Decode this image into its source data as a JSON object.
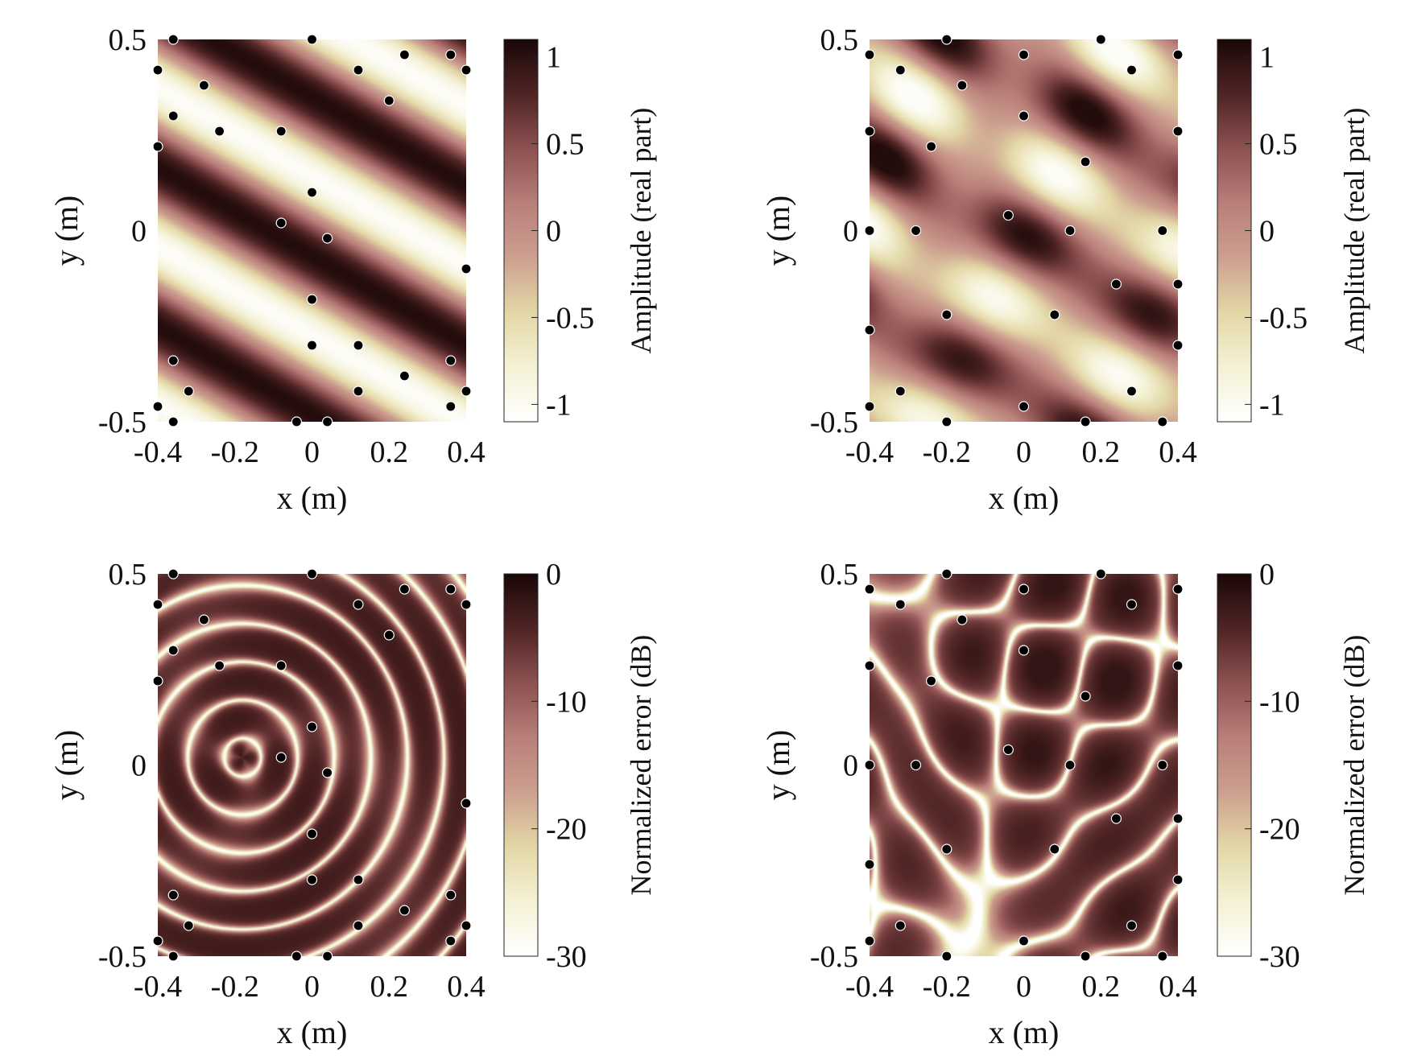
{
  "figure": {
    "colormap": [
      "#ffffff",
      "#f4f1d4",
      "#e3d7a6",
      "#cc9f8f",
      "#b97f7a",
      "#8d5151",
      "#4f2424",
      "#1a0707"
    ],
    "mark_color": "#000000",
    "mark_edge_color": "#ffffff"
  },
  "chart_data": [
    {
      "type": "heatmap",
      "xlabel": "x (m)",
      "ylabel": "y (m)",
      "xlim": [
        -0.4,
        0.4
      ],
      "ylim": [
        -0.5,
        0.5
      ],
      "xticks": [
        "-0.4",
        "-0.2",
        "0",
        "0.2",
        "0.4"
      ],
      "yticks": [
        "-0.5",
        "0",
        "0.5"
      ],
      "colorbar": {
        "label": "Amplitude (real part)",
        "range": [
          -1.1,
          1.1
        ],
        "ticks": [
          "1",
          "0.5",
          "0",
          "-0.5",
          "-1"
        ]
      },
      "field": "plane-wave",
      "points": [
        [
          -0.36,
          0.5
        ],
        [
          0,
          0.5
        ],
        [
          -0.4,
          0.42
        ],
        [
          0.12,
          0.42
        ],
        [
          0.24,
          0.46
        ],
        [
          0.36,
          0.46
        ],
        [
          0.4,
          0.42
        ],
        [
          -0.28,
          0.38
        ],
        [
          0.2,
          0.34
        ],
        [
          -0.36,
          0.3
        ],
        [
          -0.24,
          0.26
        ],
        [
          -0.08,
          0.26
        ],
        [
          -0.4,
          0.22
        ],
        [
          0,
          0.1
        ],
        [
          -0.08,
          0.02
        ],
        [
          0.04,
          -0.02
        ],
        [
          0.4,
          -0.1
        ],
        [
          0,
          -0.18
        ],
        [
          0,
          -0.3
        ],
        [
          0.12,
          -0.3
        ],
        [
          -0.36,
          -0.34
        ],
        [
          0.36,
          -0.34
        ],
        [
          -0.32,
          -0.42
        ],
        [
          0.12,
          -0.42
        ],
        [
          0.24,
          -0.38
        ],
        [
          -0.4,
          -0.46
        ],
        [
          0.36,
          -0.46
        ],
        [
          0.4,
          -0.42
        ],
        [
          -0.36,
          -0.5
        ],
        [
          -0.04,
          -0.5
        ],
        [
          0.04,
          -0.5
        ]
      ]
    },
    {
      "type": "heatmap",
      "xlabel": "x (m)",
      "ylabel": "y (m)",
      "xlim": [
        -0.4,
        0.4
      ],
      "ylim": [
        -0.5,
        0.5
      ],
      "xticks": [
        "-0.4",
        "-0.2",
        "0",
        "0.2",
        "0.4"
      ],
      "yticks": [
        "-0.5",
        "0",
        "0.5"
      ],
      "colorbar": {
        "label": "Amplitude (real part)",
        "range": [
          -1.1,
          1.1
        ],
        "ticks": [
          "1",
          "0.5",
          "0",
          "-0.5",
          "-1"
        ]
      },
      "field": "plane-wave-2",
      "points": [
        [
          -0.2,
          0.5
        ],
        [
          0.2,
          0.5
        ],
        [
          -0.4,
          0.46
        ],
        [
          0,
          0.46
        ],
        [
          0.4,
          0.46
        ],
        [
          -0.32,
          0.42
        ],
        [
          0.28,
          0.42
        ],
        [
          -0.16,
          0.38
        ],
        [
          0,
          0.3
        ],
        [
          -0.4,
          0.26
        ],
        [
          0.4,
          0.26
        ],
        [
          -0.24,
          0.22
        ],
        [
          0.16,
          0.18
        ],
        [
          -0.04,
          0.04
        ],
        [
          -0.4,
          0
        ],
        [
          -0.28,
          0
        ],
        [
          0.12,
          0
        ],
        [
          0.36,
          0
        ],
        [
          0.24,
          -0.14
        ],
        [
          0.4,
          -0.14
        ],
        [
          -0.2,
          -0.22
        ],
        [
          0.08,
          -0.22
        ],
        [
          -0.4,
          -0.26
        ],
        [
          0.4,
          -0.3
        ],
        [
          -0.32,
          -0.42
        ],
        [
          0.28,
          -0.42
        ],
        [
          -0.4,
          -0.46
        ],
        [
          0,
          -0.46
        ],
        [
          -0.2,
          -0.5
        ],
        [
          0.16,
          -0.5
        ],
        [
          0.36,
          -0.5
        ]
      ]
    },
    {
      "type": "heatmap",
      "xlabel": "x (m)",
      "ylabel": "y (m)",
      "xlim": [
        -0.4,
        0.4
      ],
      "ylim": [
        -0.5,
        0.5
      ],
      "xticks": [
        "-0.4",
        "-0.2",
        "0",
        "0.2",
        "0.4"
      ],
      "yticks": [
        "-0.5",
        "0",
        "0.5"
      ],
      "colorbar": {
        "label": "Normalized error (dB)",
        "range": [
          -30,
          0
        ],
        "ticks": [
          "0",
          "-10",
          "-20",
          "-30"
        ]
      },
      "field": "error-1",
      "points": [
        [
          -0.36,
          0.5
        ],
        [
          0,
          0.5
        ],
        [
          -0.4,
          0.42
        ],
        [
          0.12,
          0.42
        ],
        [
          0.24,
          0.46
        ],
        [
          0.36,
          0.46
        ],
        [
          0.4,
          0.42
        ],
        [
          -0.28,
          0.38
        ],
        [
          0.2,
          0.34
        ],
        [
          -0.36,
          0.3
        ],
        [
          -0.24,
          0.26
        ],
        [
          -0.08,
          0.26
        ],
        [
          -0.4,
          0.22
        ],
        [
          0,
          0.1
        ],
        [
          -0.08,
          0.02
        ],
        [
          0.04,
          -0.02
        ],
        [
          0.4,
          -0.1
        ],
        [
          0,
          -0.18
        ],
        [
          0,
          -0.3
        ],
        [
          0.12,
          -0.3
        ],
        [
          -0.36,
          -0.34
        ],
        [
          0.36,
          -0.34
        ],
        [
          -0.32,
          -0.42
        ],
        [
          0.12,
          -0.42
        ],
        [
          0.24,
          -0.38
        ],
        [
          -0.4,
          -0.46
        ],
        [
          0.36,
          -0.46
        ],
        [
          0.4,
          -0.42
        ],
        [
          -0.36,
          -0.5
        ],
        [
          -0.04,
          -0.5
        ],
        [
          0.04,
          -0.5
        ]
      ]
    },
    {
      "type": "heatmap",
      "xlabel": "x (m)",
      "ylabel": "y (m)",
      "xlim": [
        -0.4,
        0.4
      ],
      "ylim": [
        -0.5,
        0.5
      ],
      "xticks": [
        "-0.4",
        "-0.2",
        "0",
        "0.2",
        "0.4"
      ],
      "yticks": [
        "-0.5",
        "0",
        "0.5"
      ],
      "colorbar": {
        "label": "Normalized error (dB)",
        "range": [
          -30,
          0
        ],
        "ticks": [
          "0",
          "-10",
          "-20",
          "-30"
        ]
      },
      "field": "error-2",
      "points": [
        [
          -0.2,
          0.5
        ],
        [
          0.2,
          0.5
        ],
        [
          -0.4,
          0.46
        ],
        [
          0,
          0.46
        ],
        [
          0.4,
          0.46
        ],
        [
          -0.32,
          0.42
        ],
        [
          0.28,
          0.42
        ],
        [
          -0.16,
          0.38
        ],
        [
          0,
          0.3
        ],
        [
          -0.4,
          0.26
        ],
        [
          0.4,
          0.26
        ],
        [
          -0.24,
          0.22
        ],
        [
          0.16,
          0.18
        ],
        [
          -0.04,
          0.04
        ],
        [
          -0.4,
          0
        ],
        [
          -0.28,
          0
        ],
        [
          0.12,
          0
        ],
        [
          0.36,
          0
        ],
        [
          0.24,
          -0.14
        ],
        [
          0.4,
          -0.14
        ],
        [
          -0.2,
          -0.22
        ],
        [
          0.08,
          -0.22
        ],
        [
          -0.4,
          -0.26
        ],
        [
          0.4,
          -0.3
        ],
        [
          -0.32,
          -0.42
        ],
        [
          0.28,
          -0.42
        ],
        [
          -0.4,
          -0.46
        ],
        [
          0,
          -0.46
        ],
        [
          -0.2,
          -0.5
        ],
        [
          0.16,
          -0.5
        ],
        [
          0.36,
          -0.5
        ]
      ]
    }
  ]
}
